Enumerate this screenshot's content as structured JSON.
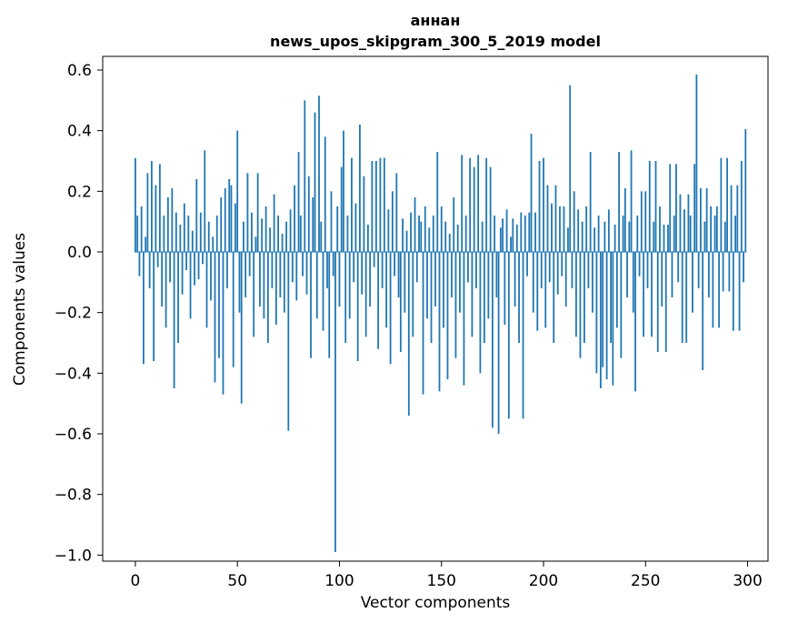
{
  "figure": {
    "title": "аннан",
    "subtitle": "news_upos_skipgram_300_5_2019 model",
    "xlabel": "Vector components",
    "ylabel": "Components values"
  },
  "chart_data": {
    "type": "bar",
    "title": "аннан",
    "subtitle": "news_upos_skipgram_300_5_2019 model",
    "xlabel": "Vector components",
    "ylabel": "Components values",
    "bar_color": "#1f77b4",
    "grid": false,
    "legend": "none",
    "xlim": [
      -16,
      310
    ],
    "ylim": [
      -1.02,
      0.645
    ],
    "xticks": [
      0,
      50,
      100,
      150,
      200,
      250,
      300
    ],
    "yticks": [
      0.6,
      0.4,
      0.2,
      0.0,
      -0.2,
      -0.4,
      -0.6,
      -0.8,
      -1.0
    ],
    "x_start": 0,
    "n_components": 300,
    "values": [
      0.31,
      0.12,
      -0.08,
      0.15,
      -0.37,
      0.05,
      0.26,
      -0.12,
      0.3,
      -0.36,
      0.22,
      -0.05,
      0.29,
      -0.18,
      0.12,
      -0.25,
      0.18,
      -0.1,
      0.21,
      -0.45,
      0.13,
      -0.3,
      0.09,
      -0.14,
      0.16,
      -0.06,
      0.12,
      -0.22,
      0.07,
      -0.11,
      0.24,
      -0.09,
      0.13,
      -0.04,
      0.335,
      -0.25,
      0.1,
      -0.16,
      0.05,
      -0.43,
      0.12,
      -0.35,
      0.18,
      -0.47,
      0.21,
      -0.12,
      0.24,
      0.22,
      -0.38,
      0.16,
      0.4,
      -0.2,
      -0.5,
      0.1,
      -0.15,
      0.26,
      -0.08,
      0.13,
      -0.28,
      0.05,
      0.26,
      -0.18,
      0.11,
      -0.22,
      0.15,
      -0.3,
      0.08,
      -0.12,
      0.19,
      -0.24,
      0.12,
      -0.15,
      0.06,
      -0.2,
      0.1,
      -0.59,
      0.14,
      -0.1,
      0.22,
      -0.16,
      0.33,
      0.12,
      -0.08,
      0.5,
      -0.14,
      0.25,
      -0.35,
      0.18,
      0.46,
      -0.22,
      0.515,
      0.1,
      -0.26,
      0.38,
      -0.12,
      -0.35,
      0.2,
      -0.08,
      -0.99,
      0.15,
      -0.18,
      0.28,
      0.4,
      -0.3,
      0.12,
      -0.22,
      0.31,
      -0.1,
      0.16,
      -0.36,
      0.42,
      -0.14,
      0.25,
      -0.28,
      0.09,
      -0.18,
      0.3,
      -0.05,
      0.3,
      -0.32,
      0.31,
      -0.12,
      0.31,
      -0.25,
      0.14,
      -0.37,
      0.2,
      -0.08,
      0.26,
      -0.15,
      -0.33,
      0.11,
      -0.2,
      0.07,
      -0.54,
      0.13,
      -0.28,
      0.18,
      -0.1,
      0.12,
      0.1,
      -0.47,
      0.15,
      -0.22,
      0.08,
      -0.3,
      0.12,
      -0.18,
      0.33,
      -0.46,
      0.15,
      -0.25,
      0.1,
      -0.42,
      0.06,
      -0.15,
      0.18,
      -0.35,
      0.09,
      -0.2,
      0.32,
      -0.44,
      0.12,
      -0.1,
      0.31,
      -0.28,
      0.28,
      -0.12,
      0.32,
      -0.4,
      0.1,
      -0.3,
      0.31,
      -0.22,
      0.28,
      -0.58,
      0.12,
      -0.15,
      -0.6,
      0.08,
      0.11,
      -0.24,
      0.14,
      -0.55,
      0.05,
      0.11,
      -0.18,
      0.09,
      -0.3,
      0.13,
      -0.55,
      0.12,
      -0.08,
      0.13,
      0.39,
      -0.2,
      0.13,
      -0.26,
      0.3,
      -0.12,
      0.31,
      -0.25,
      0.22,
      -0.1,
      0.16,
      -0.3,
      0.22,
      -0.14,
      0.15,
      -0.08,
      0.15,
      -0.18,
      0.08,
      0.55,
      -0.12,
      0.2,
      -0.28,
      0.14,
      -0.35,
      0.1,
      -0.3,
      0.15,
      -0.12,
      0.33,
      -0.2,
      0.08,
      -0.4,
      0.12,
      -0.45,
      -0.38,
      0.1,
      -0.42,
      0.14,
      -0.3,
      -0.44,
      0.09,
      -0.25,
      0.33,
      -0.35,
      0.12,
      0.21,
      -0.15,
      0.1,
      0.335,
      -0.2,
      -0.46,
      0.12,
      -0.08,
      0.2,
      -0.28,
      0.2,
      -0.12,
      0.3,
      -0.28,
      0.1,
      0.3,
      -0.33,
      0.15,
      -0.18,
      0.09,
      -0.33,
      0.09,
      0.29,
      -0.15,
      0.12,
      0.29,
      -0.1,
      0.19,
      -0.3,
      0.14,
      -0.3,
      0.19,
      0.12,
      -0.2,
      0.29,
      0.585,
      -0.12,
      0.21,
      -0.39,
      0.1,
      0.21,
      -0.15,
      0.15,
      -0.25,
      0.12,
      0.15,
      -0.25,
      0.31,
      -0.13,
      0.1,
      0.31,
      -0.13,
      0.22,
      -0.26,
      0.12,
      0.22,
      -0.26,
      0.3,
      -0.1,
      0.405
    ]
  }
}
